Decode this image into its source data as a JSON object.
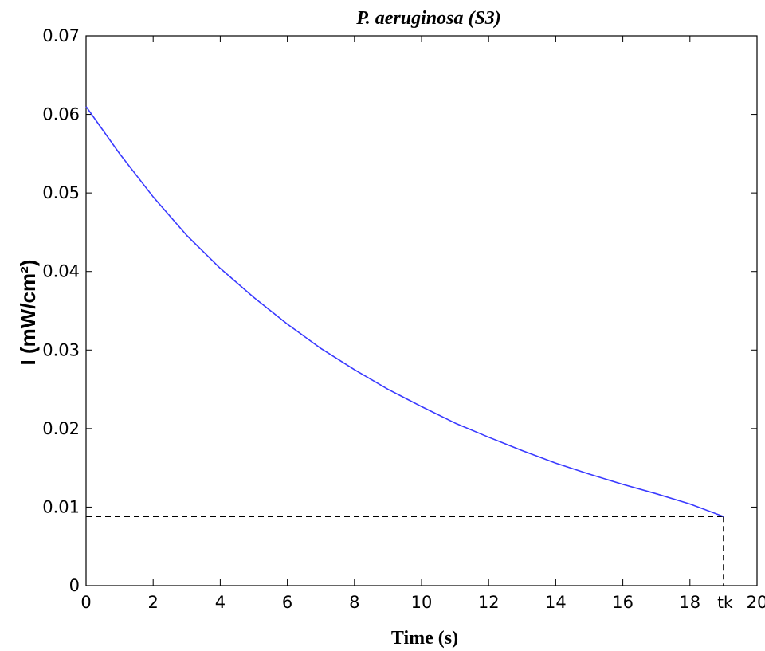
{
  "chart_data": {
    "type": "line",
    "title": "P. aeruginosa (S3)",
    "xlabel": "Time (s)",
    "ylabel": "I (mW/cm²)",
    "xlim": [
      0,
      20
    ],
    "ylim": [
      0,
      0.07
    ],
    "x_ticks": [
      {
        "value": 0,
        "label": "0"
      },
      {
        "value": 2,
        "label": "2"
      },
      {
        "value": 4,
        "label": "4"
      },
      {
        "value": 6,
        "label": "6"
      },
      {
        "value": 8,
        "label": "8"
      },
      {
        "value": 10,
        "label": "10"
      },
      {
        "value": 12,
        "label": "12"
      },
      {
        "value": 14,
        "label": "14"
      },
      {
        "value": 16,
        "label": "16"
      },
      {
        "value": 18,
        "label": "18"
      },
      {
        "value": 20,
        "label": "20"
      }
    ],
    "y_ticks": [
      {
        "value": 0,
        "label": "0"
      },
      {
        "value": 0.01,
        "label": "0.01"
      },
      {
        "value": 0.02,
        "label": "0.02"
      },
      {
        "value": 0.03,
        "label": "0.03"
      },
      {
        "value": 0.04,
        "label": "0.04"
      },
      {
        "value": 0.05,
        "label": "0.05"
      },
      {
        "value": 0.06,
        "label": "0.06"
      },
      {
        "value": 0.07,
        "label": "0.07"
      }
    ],
    "grid": false,
    "series": [
      {
        "color": "#3a3aff",
        "x": [
          0,
          1,
          2,
          3,
          4,
          5,
          6,
          7,
          8,
          9,
          10,
          11,
          12,
          13,
          14,
          15,
          16,
          17,
          18,
          19
        ],
        "y": [
          0.061,
          0.055,
          0.0495,
          0.0446,
          0.0404,
          0.0367,
          0.0333,
          0.0302,
          0.0275,
          0.025,
          0.0228,
          0.0207,
          0.0189,
          0.0172,
          0.0156,
          0.0142,
          0.0129,
          0.0117,
          0.0104,
          0.0088
        ]
      }
    ],
    "annotations": {
      "threshold_y": 0.0088,
      "tk_x": 19,
      "tk_label": "tk",
      "line_color": "#000000"
    }
  }
}
